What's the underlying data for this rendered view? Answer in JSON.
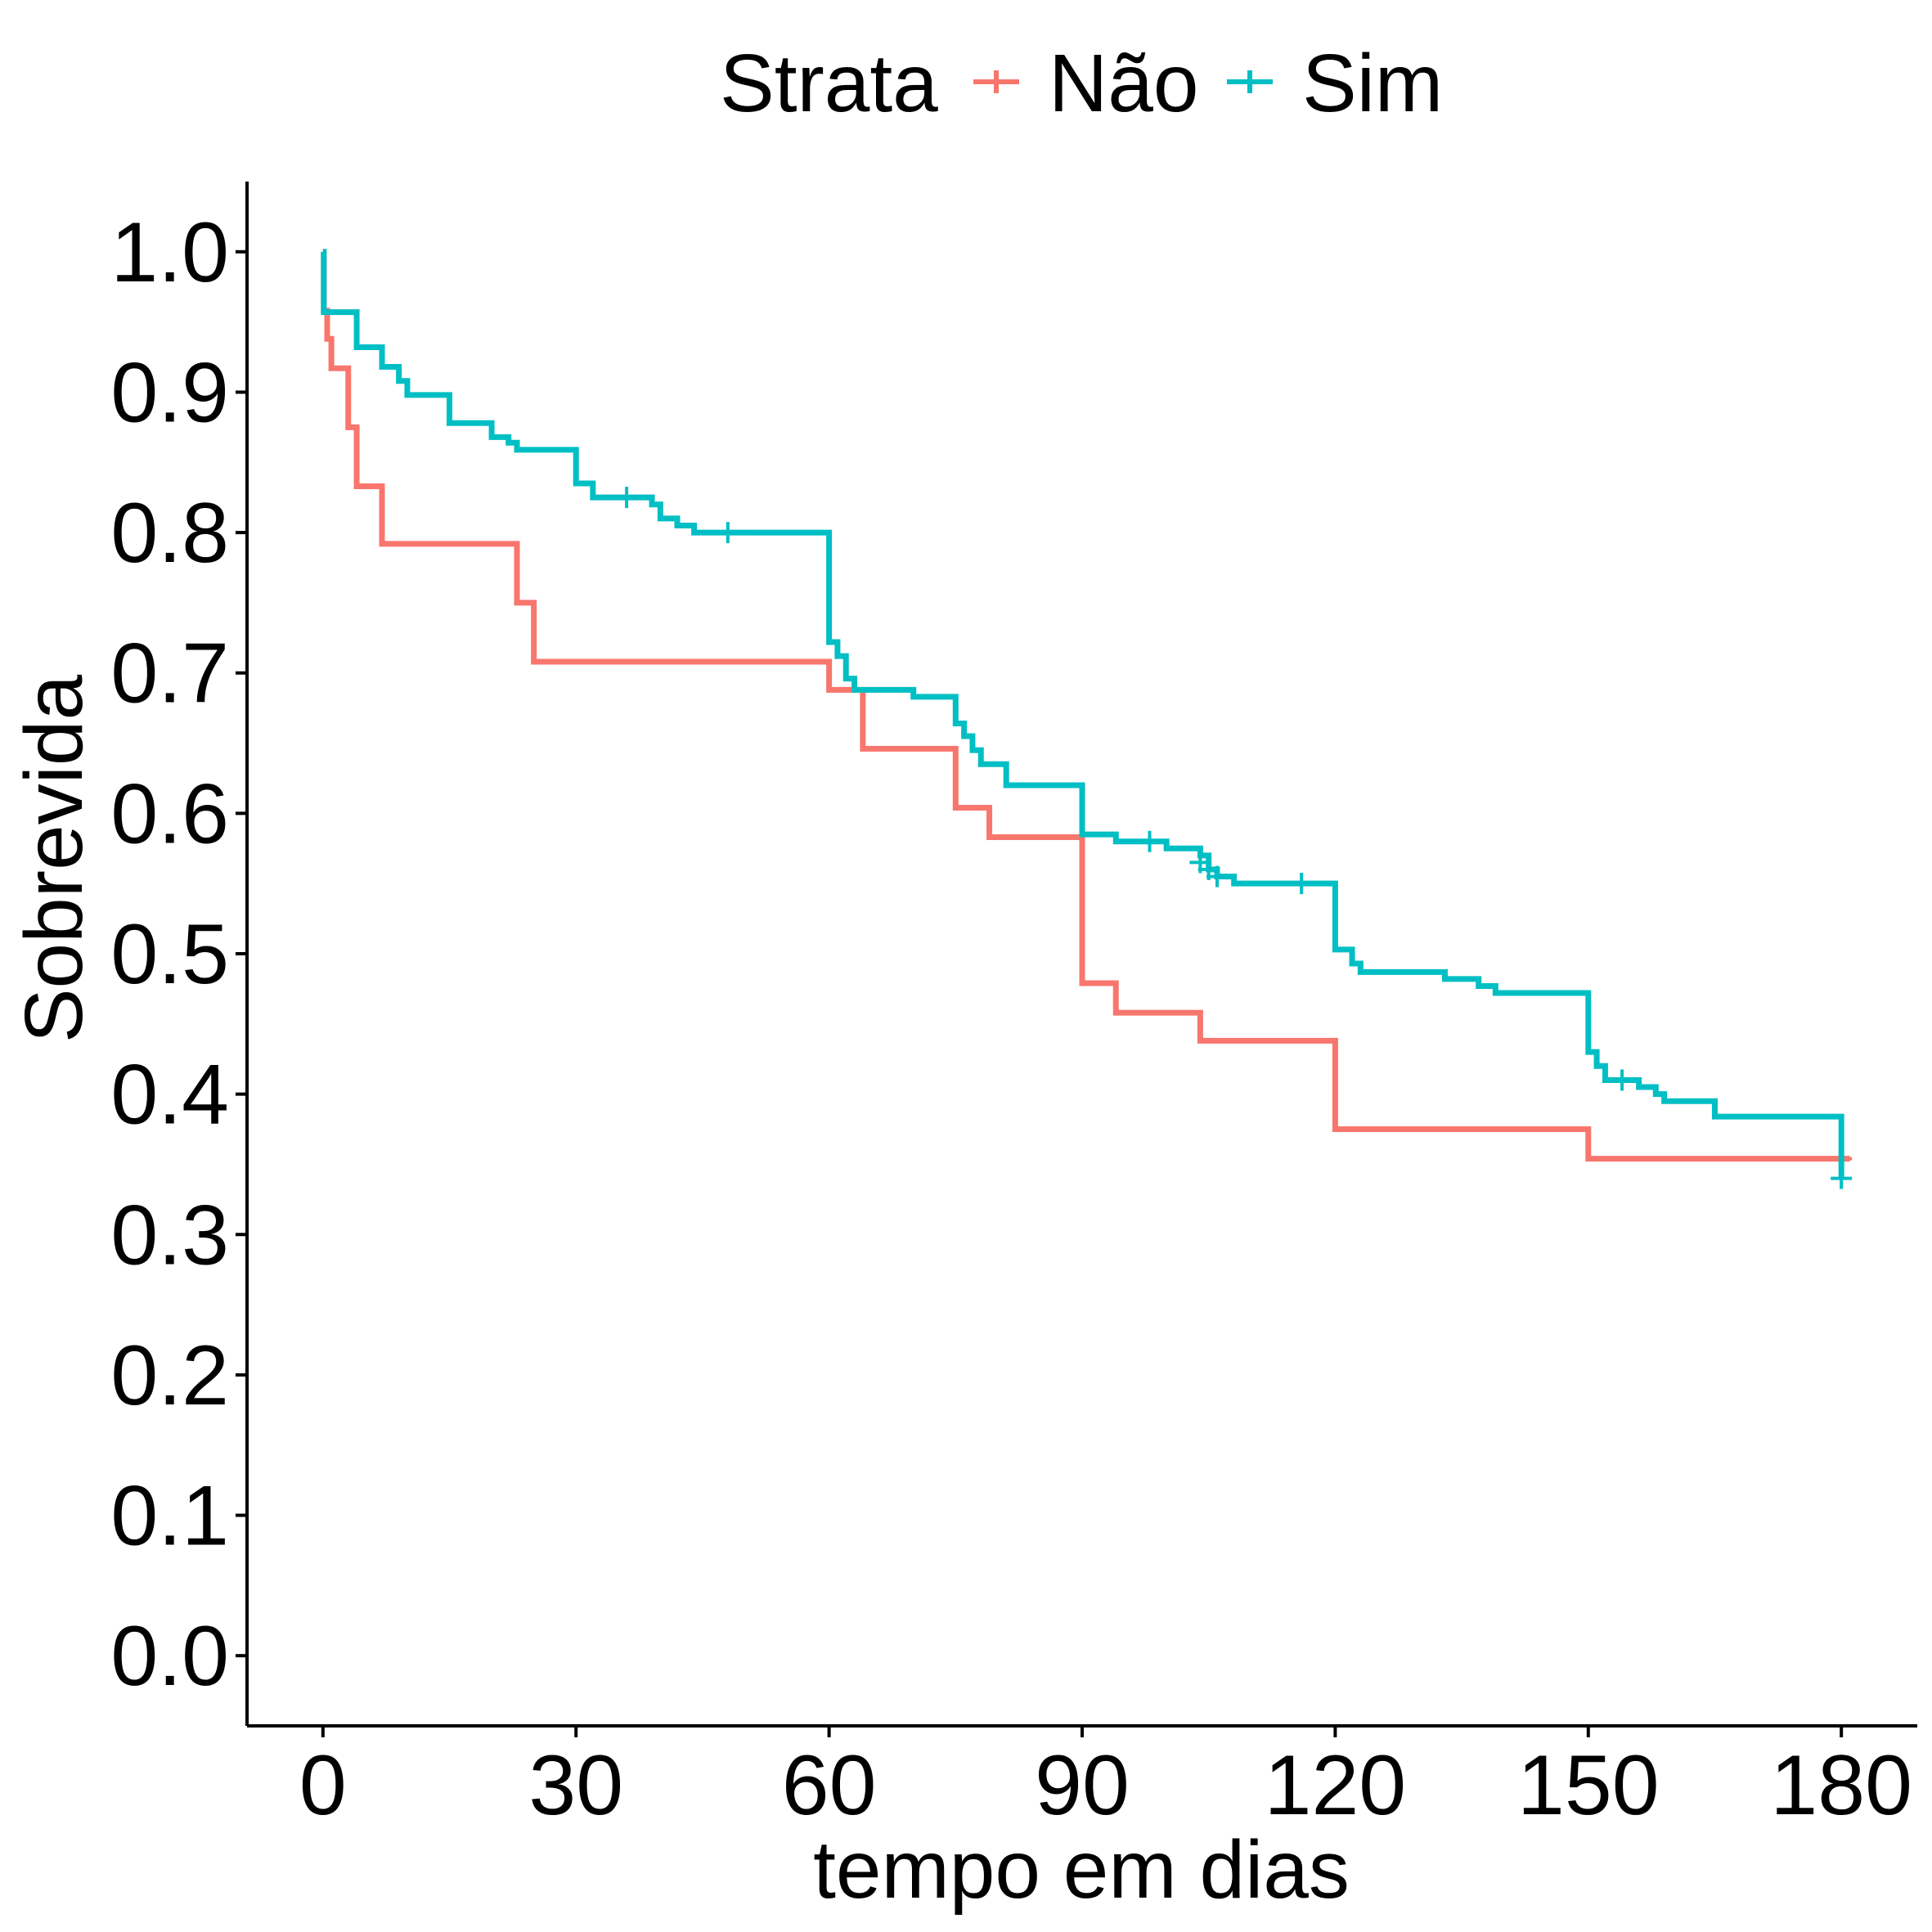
{
  "chart_data": {
    "type": "line",
    "xlabel": "tempo em dias",
    "ylabel": "Sobrevida",
    "xlim": [
      -9,
      189
    ],
    "ylim": [
      -0.05,
      1.05
    ],
    "x_ticks": [
      0,
      30,
      60,
      90,
      120,
      150,
      180
    ],
    "x_tick_labels": [
      "0",
      "30",
      "60",
      "90",
      "120",
      "150",
      "180"
    ],
    "y_ticks": [
      0.0,
      0.1,
      0.2,
      0.3,
      0.4,
      0.5,
      0.6,
      0.7,
      0.8,
      0.9,
      1.0
    ],
    "y_tick_labels": [
      "0.0",
      "0.1",
      "0.2",
      "0.3",
      "0.4",
      "0.5",
      "0.6",
      "0.7",
      "0.8",
      "0.9",
      "1.0"
    ],
    "grid": false,
    "legend": {
      "title": "Strata",
      "position": "top"
    },
    "series": [
      {
        "name": "Não",
        "color": "#F8766D",
        "steps": [
          [
            0,
            1.0
          ],
          [
            0.1,
            0.958
          ],
          [
            0.5,
            0.938
          ],
          [
            1,
            0.917
          ],
          [
            3,
            0.875
          ],
          [
            4,
            0.833
          ],
          [
            7,
            0.792
          ],
          [
            23,
            0.75
          ],
          [
            25,
            0.708
          ],
          [
            60,
            0.688
          ],
          [
            64,
            0.646
          ],
          [
            75,
            0.604
          ],
          [
            79,
            0.583
          ],
          [
            90,
            0.479
          ],
          [
            94,
            0.458
          ],
          [
            104,
            0.438
          ],
          [
            120,
            0.375
          ],
          [
            150,
            0.354
          ],
          [
            181,
            0.354
          ]
        ],
        "censored": [
          [
            180,
            0.354
          ]
        ]
      },
      {
        "name": "Sim",
        "color": "#00BFC4",
        "steps": [
          [
            0,
            1.0
          ],
          [
            0.1,
            0.957
          ],
          [
            4,
            0.932
          ],
          [
            7,
            0.918
          ],
          [
            9,
            0.908
          ],
          [
            10,
            0.898
          ],
          [
            15,
            0.878
          ],
          [
            20,
            0.868
          ],
          [
            22,
            0.864
          ],
          [
            23,
            0.859
          ],
          [
            30,
            0.835
          ],
          [
            32,
            0.825
          ],
          [
            39,
            0.82
          ],
          [
            40,
            0.81
          ],
          [
            42,
            0.805
          ],
          [
            44,
            0.8
          ],
          [
            60,
            0.722
          ],
          [
            61,
            0.712
          ],
          [
            62,
            0.696
          ],
          [
            63,
            0.688
          ],
          [
            70,
            0.683
          ],
          [
            75,
            0.664
          ],
          [
            76,
            0.655
          ],
          [
            77,
            0.645
          ],
          [
            78,
            0.635
          ],
          [
            81,
            0.62
          ],
          [
            90,
            0.585
          ],
          [
            94,
            0.58
          ],
          [
            100,
            0.575
          ],
          [
            104,
            0.57
          ],
          [
            105,
            0.56
          ],
          [
            106,
            0.555
          ],
          [
            108,
            0.55
          ],
          [
            120,
            0.503
          ],
          [
            122,
            0.493
          ],
          [
            123,
            0.487
          ],
          [
            133,
            0.482
          ],
          [
            137,
            0.477
          ],
          [
            139,
            0.472
          ],
          [
            150,
            0.43
          ],
          [
            151,
            0.42
          ],
          [
            152,
            0.41
          ],
          [
            156,
            0.405
          ],
          [
            158,
            0.4
          ],
          [
            159,
            0.395
          ],
          [
            165,
            0.384
          ],
          [
            180,
            0.34
          ]
        ],
        "censored": [
          [
            36,
            0.825
          ],
          [
            48,
            0.8
          ],
          [
            98,
            0.58
          ],
          [
            104,
            0.565
          ],
          [
            105,
            0.56
          ],
          [
            106,
            0.555
          ],
          [
            116,
            0.55
          ],
          [
            154,
            0.41
          ],
          [
            180,
            0.34
          ]
        ]
      }
    ]
  }
}
